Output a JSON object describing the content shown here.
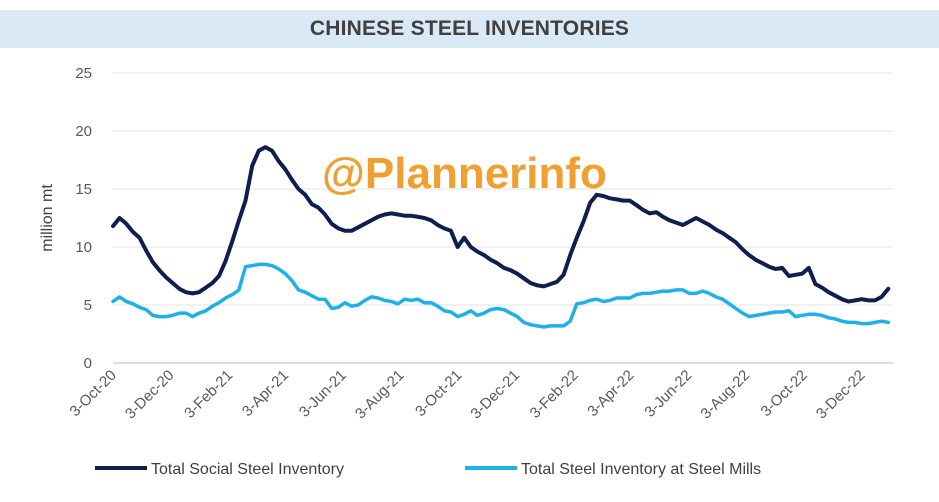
{
  "chart_data": {
    "type": "line",
    "title": "CHINESE STEEL INVENTORIES",
    "ylabel": "million mt",
    "ylim": [
      0,
      25
    ],
    "yticks": [
      0,
      5,
      10,
      15,
      20,
      25
    ],
    "xticks": [
      "3-Oct-20",
      "3-Dec-20",
      "3-Feb-21",
      "3-Apr-21",
      "3-Jun-21",
      "3-Aug-21",
      "3-Oct-21",
      "3-Dec-21",
      "3-Feb-22",
      "3-Apr-22",
      "3-Jun-22",
      "3-Aug-22",
      "3-Oct-22",
      "3-Dec-22"
    ],
    "x_start": "2020-10-03",
    "grid": true,
    "legend_position": "bottom",
    "series": [
      {
        "name": "Total Social Steel Inventory",
        "color": "#0d1f4f",
        "points": [
          [
            "2020-10-03",
            11.8
          ],
          [
            "2020-10-10",
            12.5
          ],
          [
            "2020-10-17",
            12.0
          ],
          [
            "2020-10-24",
            11.3
          ],
          [
            "2020-10-31",
            10.8
          ],
          [
            "2020-11-07",
            9.7
          ],
          [
            "2020-11-14",
            8.7
          ],
          [
            "2020-11-21",
            8.0
          ],
          [
            "2020-11-28",
            7.4
          ],
          [
            "2020-12-05",
            6.9
          ],
          [
            "2020-12-12",
            6.4
          ],
          [
            "2020-12-19",
            6.1
          ],
          [
            "2020-12-26",
            6.0
          ],
          [
            "2021-01-02",
            6.1
          ],
          [
            "2021-01-09",
            6.5
          ],
          [
            "2021-01-16",
            6.9
          ],
          [
            "2021-01-23",
            7.5
          ],
          [
            "2021-01-30",
            8.8
          ],
          [
            "2021-02-06",
            10.5
          ],
          [
            "2021-02-13",
            12.3
          ],
          [
            "2021-02-20",
            14.0
          ],
          [
            "2021-02-27",
            17.0
          ],
          [
            "2021-03-06",
            18.3
          ],
          [
            "2021-03-13",
            18.6
          ],
          [
            "2021-03-20",
            18.3
          ],
          [
            "2021-03-27",
            17.4
          ],
          [
            "2021-04-03",
            16.7
          ],
          [
            "2021-04-10",
            15.8
          ],
          [
            "2021-04-17",
            15.0
          ],
          [
            "2021-04-24",
            14.5
          ],
          [
            "2021-05-01",
            13.7
          ],
          [
            "2021-05-08",
            13.4
          ],
          [
            "2021-05-15",
            12.8
          ],
          [
            "2021-05-22",
            12.0
          ],
          [
            "2021-05-29",
            11.6
          ],
          [
            "2021-06-05",
            11.4
          ],
          [
            "2021-06-12",
            11.4
          ],
          [
            "2021-06-19",
            11.7
          ],
          [
            "2021-06-26",
            12.0
          ],
          [
            "2021-07-03",
            12.3
          ],
          [
            "2021-07-10",
            12.6
          ],
          [
            "2021-07-17",
            12.8
          ],
          [
            "2021-07-24",
            12.9
          ],
          [
            "2021-07-31",
            12.8
          ],
          [
            "2021-08-07",
            12.7
          ],
          [
            "2021-08-14",
            12.7
          ],
          [
            "2021-08-21",
            12.6
          ],
          [
            "2021-08-28",
            12.5
          ],
          [
            "2021-09-04",
            12.3
          ],
          [
            "2021-09-11",
            11.9
          ],
          [
            "2021-09-18",
            11.6
          ],
          [
            "2021-09-25",
            11.4
          ],
          [
            "2021-10-02",
            10.0
          ],
          [
            "2021-10-09",
            10.8
          ],
          [
            "2021-10-16",
            10.0
          ],
          [
            "2021-10-23",
            9.6
          ],
          [
            "2021-10-30",
            9.3
          ],
          [
            "2021-11-06",
            8.9
          ],
          [
            "2021-11-13",
            8.6
          ],
          [
            "2021-11-20",
            8.2
          ],
          [
            "2021-11-27",
            8.0
          ],
          [
            "2021-12-04",
            7.7
          ],
          [
            "2021-12-11",
            7.3
          ],
          [
            "2021-12-18",
            6.9
          ],
          [
            "2021-12-25",
            6.7
          ],
          [
            "2022-01-01",
            6.6
          ],
          [
            "2022-01-08",
            6.8
          ],
          [
            "2022-01-15",
            7.0
          ],
          [
            "2022-01-22",
            7.6
          ],
          [
            "2022-01-29",
            9.3
          ],
          [
            "2022-02-05",
            10.8
          ],
          [
            "2022-02-12",
            12.2
          ],
          [
            "2022-02-19",
            13.8
          ],
          [
            "2022-02-26",
            14.5
          ],
          [
            "2022-03-05",
            14.4
          ],
          [
            "2022-03-12",
            14.2
          ],
          [
            "2022-03-19",
            14.1
          ],
          [
            "2022-03-26",
            14.0
          ],
          [
            "2022-04-02",
            14.0
          ],
          [
            "2022-04-09",
            13.6
          ],
          [
            "2022-04-16",
            13.2
          ],
          [
            "2022-04-23",
            12.9
          ],
          [
            "2022-04-30",
            13.0
          ],
          [
            "2022-05-07",
            12.6
          ],
          [
            "2022-05-14",
            12.3
          ],
          [
            "2022-05-21",
            12.1
          ],
          [
            "2022-05-28",
            11.9
          ],
          [
            "2022-06-04",
            12.2
          ],
          [
            "2022-06-11",
            12.5
          ],
          [
            "2022-06-18",
            12.2
          ],
          [
            "2022-06-25",
            11.9
          ],
          [
            "2022-07-02",
            11.5
          ],
          [
            "2022-07-09",
            11.2
          ],
          [
            "2022-07-16",
            10.8
          ],
          [
            "2022-07-23",
            10.4
          ],
          [
            "2022-07-30",
            9.8
          ],
          [
            "2022-08-06",
            9.3
          ],
          [
            "2022-08-13",
            8.9
          ],
          [
            "2022-08-20",
            8.6
          ],
          [
            "2022-08-27",
            8.3
          ],
          [
            "2022-09-03",
            8.1
          ],
          [
            "2022-09-10",
            8.2
          ],
          [
            "2022-09-17",
            7.5
          ],
          [
            "2022-09-24",
            7.6
          ],
          [
            "2022-10-01",
            7.7
          ],
          [
            "2022-10-08",
            8.2
          ],
          [
            "2022-10-15",
            6.8
          ],
          [
            "2022-10-22",
            6.5
          ],
          [
            "2022-10-29",
            6.1
          ],
          [
            "2022-11-05",
            5.8
          ],
          [
            "2022-11-12",
            5.5
          ],
          [
            "2022-11-19",
            5.3
          ],
          [
            "2022-11-26",
            5.4
          ],
          [
            "2022-12-03",
            5.5
          ],
          [
            "2022-12-10",
            5.4
          ],
          [
            "2022-12-17",
            5.4
          ],
          [
            "2022-12-24",
            5.7
          ],
          [
            "2022-12-31",
            6.4
          ]
        ]
      },
      {
        "name": "Total Steel Inventory at Steel Mills",
        "color": "#1fb0ea",
        "points": [
          [
            "2020-10-03",
            5.3
          ],
          [
            "2020-10-10",
            5.7
          ],
          [
            "2020-10-17",
            5.3
          ],
          [
            "2020-10-24",
            5.1
          ],
          [
            "2020-10-31",
            4.8
          ],
          [
            "2020-11-07",
            4.6
          ],
          [
            "2020-11-14",
            4.1
          ],
          [
            "2020-11-21",
            4.0
          ],
          [
            "2020-11-28",
            4.0
          ],
          [
            "2020-12-05",
            4.1
          ],
          [
            "2020-12-12",
            4.3
          ],
          [
            "2020-12-19",
            4.3
          ],
          [
            "2020-12-26",
            4.0
          ],
          [
            "2021-01-02",
            4.3
          ],
          [
            "2021-01-09",
            4.5
          ],
          [
            "2021-01-16",
            4.9
          ],
          [
            "2021-01-23",
            5.2
          ],
          [
            "2021-01-30",
            5.6
          ],
          [
            "2021-02-06",
            5.9
          ],
          [
            "2021-02-13",
            6.3
          ],
          [
            "2021-02-20",
            8.3
          ],
          [
            "2021-02-27",
            8.4
          ],
          [
            "2021-03-06",
            8.5
          ],
          [
            "2021-03-13",
            8.5
          ],
          [
            "2021-03-20",
            8.4
          ],
          [
            "2021-03-27",
            8.1
          ],
          [
            "2021-04-03",
            7.7
          ],
          [
            "2021-04-10",
            7.1
          ],
          [
            "2021-04-17",
            6.3
          ],
          [
            "2021-04-24",
            6.1
          ],
          [
            "2021-05-01",
            5.8
          ],
          [
            "2021-05-08",
            5.5
          ],
          [
            "2021-05-15",
            5.5
          ],
          [
            "2021-05-22",
            4.7
          ],
          [
            "2021-05-29",
            4.8
          ],
          [
            "2021-06-05",
            5.2
          ],
          [
            "2021-06-12",
            4.9
          ],
          [
            "2021-06-19",
            5.0
          ],
          [
            "2021-06-26",
            5.4
          ],
          [
            "2021-07-03",
            5.7
          ],
          [
            "2021-07-10",
            5.6
          ],
          [
            "2021-07-17",
            5.4
          ],
          [
            "2021-07-24",
            5.3
          ],
          [
            "2021-07-31",
            5.1
          ],
          [
            "2021-08-07",
            5.5
          ],
          [
            "2021-08-14",
            5.4
          ],
          [
            "2021-08-21",
            5.5
          ],
          [
            "2021-08-28",
            5.2
          ],
          [
            "2021-09-04",
            5.2
          ],
          [
            "2021-09-11",
            4.9
          ],
          [
            "2021-09-18",
            4.5
          ],
          [
            "2021-09-25",
            4.4
          ],
          [
            "2021-10-02",
            4.0
          ],
          [
            "2021-10-09",
            4.2
          ],
          [
            "2021-10-16",
            4.5
          ],
          [
            "2021-10-23",
            4.1
          ],
          [
            "2021-10-30",
            4.3
          ],
          [
            "2021-11-06",
            4.6
          ],
          [
            "2021-11-13",
            4.7
          ],
          [
            "2021-11-20",
            4.6
          ],
          [
            "2021-11-27",
            4.3
          ],
          [
            "2021-12-04",
            4.0
          ],
          [
            "2021-12-11",
            3.5
          ],
          [
            "2021-12-18",
            3.3
          ],
          [
            "2021-12-25",
            3.2
          ],
          [
            "2022-01-01",
            3.1
          ],
          [
            "2022-01-08",
            3.2
          ],
          [
            "2022-01-15",
            3.2
          ],
          [
            "2022-01-22",
            3.2
          ],
          [
            "2022-01-29",
            3.6
          ],
          [
            "2022-02-05",
            5.1
          ],
          [
            "2022-02-12",
            5.2
          ],
          [
            "2022-02-19",
            5.4
          ],
          [
            "2022-02-26",
            5.5
          ],
          [
            "2022-03-05",
            5.3
          ],
          [
            "2022-03-12",
            5.4
          ],
          [
            "2022-03-19",
            5.6
          ],
          [
            "2022-03-26",
            5.6
          ],
          [
            "2022-04-02",
            5.6
          ],
          [
            "2022-04-09",
            5.9
          ],
          [
            "2022-04-16",
            6.0
          ],
          [
            "2022-04-23",
            6.0
          ],
          [
            "2022-04-30",
            6.1
          ],
          [
            "2022-05-07",
            6.2
          ],
          [
            "2022-05-14",
            6.2
          ],
          [
            "2022-05-21",
            6.3
          ],
          [
            "2022-05-28",
            6.3
          ],
          [
            "2022-06-04",
            6.0
          ],
          [
            "2022-06-11",
            6.0
          ],
          [
            "2022-06-18",
            6.2
          ],
          [
            "2022-06-25",
            6.0
          ],
          [
            "2022-07-02",
            5.7
          ],
          [
            "2022-07-09",
            5.5
          ],
          [
            "2022-07-16",
            5.1
          ],
          [
            "2022-07-23",
            4.7
          ],
          [
            "2022-07-30",
            4.3
          ],
          [
            "2022-08-06",
            4.0
          ],
          [
            "2022-08-13",
            4.1
          ],
          [
            "2022-08-20",
            4.2
          ],
          [
            "2022-08-27",
            4.3
          ],
          [
            "2022-09-03",
            4.4
          ],
          [
            "2022-09-10",
            4.4
          ],
          [
            "2022-09-17",
            4.5
          ],
          [
            "2022-09-24",
            4.0
          ],
          [
            "2022-10-01",
            4.1
          ],
          [
            "2022-10-08",
            4.2
          ],
          [
            "2022-10-15",
            4.2
          ],
          [
            "2022-10-22",
            4.1
          ],
          [
            "2022-10-29",
            3.9
          ],
          [
            "2022-11-05",
            3.8
          ],
          [
            "2022-11-12",
            3.6
          ],
          [
            "2022-11-19",
            3.5
          ],
          [
            "2022-11-26",
            3.5
          ],
          [
            "2022-12-03",
            3.4
          ],
          [
            "2022-12-10",
            3.4
          ],
          [
            "2022-12-17",
            3.5
          ],
          [
            "2022-12-24",
            3.6
          ],
          [
            "2022-12-31",
            3.5
          ]
        ]
      }
    ],
    "watermark": "@Plannerinfo"
  }
}
